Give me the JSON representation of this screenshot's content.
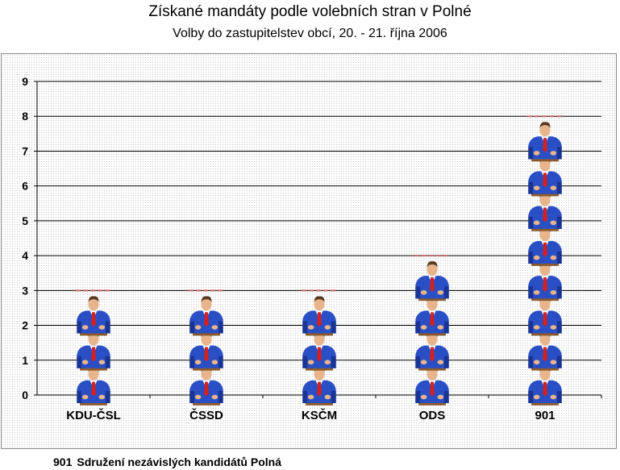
{
  "chart_data": {
    "type": "bar",
    "title": "Získané mandáty podle volebních stran v Polné",
    "subtitle": "Volby do zastupitelstev obcí, 20. - 21. října 2006",
    "categories": [
      "KDU-ČSL",
      "ČSSD",
      "KSČM",
      "ODS",
      "901"
    ],
    "values": [
      3,
      3,
      3,
      4,
      8
    ],
    "ylim": [
      0,
      9
    ],
    "yticks": [
      "0",
      "1",
      "2",
      "3",
      "4",
      "5",
      "6",
      "7",
      "8",
      "9"
    ],
    "xlabel": "",
    "ylabel": "",
    "grid": true,
    "bar_style": "pictograph-person-icon",
    "colors": {
      "suit": "#2a4fc4",
      "suit_dark": "#1a3494",
      "tie": "#d42020",
      "skin": "#e8b48c",
      "hair": "#5a3a22",
      "podium": "#8c5a2a"
    }
  },
  "footnote": {
    "code": "901",
    "text": "Sdružení nezávislých kandidátů Polná"
  }
}
